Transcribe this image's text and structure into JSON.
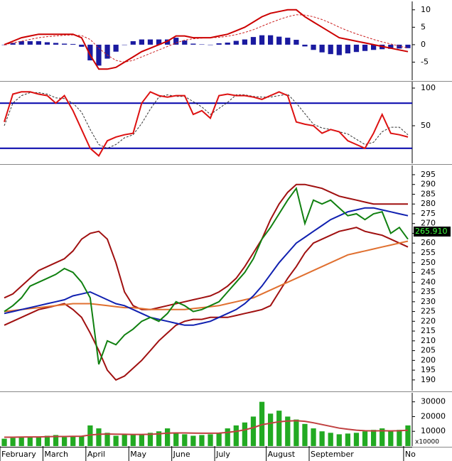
{
  "chart_data": [
    {
      "type": "macd",
      "ylim": [
        -10.2,
        12.4
      ],
      "yticks": [
        -5,
        0,
        5,
        10
      ],
      "series": [
        {
          "kind": "bar",
          "color": "#1a1aa0",
          "values": [
            0,
            0.5,
            1,
            1,
            1,
            0.7,
            0.5,
            0.3,
            0.2,
            -0.6,
            -4.5,
            -6,
            -4,
            -2,
            0,
            1,
            1.5,
            1.5,
            1.5,
            1.5,
            2,
            1.2,
            0.3,
            0.1,
            0,
            0.4,
            0.6,
            1.1,
            1.5,
            2.2,
            2.7,
            2.7,
            2.3,
            2,
            1.4,
            -0.5,
            -1.5,
            -2.2,
            -2.7,
            -3,
            -2.5,
            -2.1,
            -1.8,
            -1.5,
            -1.3,
            -1.2,
            -1.1,
            -1
          ]
        },
        {
          "kind": "line",
          "dash": true,
          "color": "#cc2020",
          "values": [
            0,
            0.5,
            1,
            1.5,
            2,
            2.3,
            2.5,
            2.7,
            2.8,
            2.6,
            1.5,
            -1,
            -3,
            -4.5,
            -5,
            -4.5,
            -3.5,
            -2.5,
            -1.5,
            -0.5,
            0.5,
            1.3,
            1.7,
            1.9,
            2,
            2.1,
            2.4,
            2.9,
            3.5,
            4.3,
            5.3,
            6.3,
            7.2,
            8,
            8.6,
            8.5,
            8,
            7.2,
            6.2,
            5,
            4,
            3.1,
            2.3,
            1.5,
            0.8,
            0.2,
            -0.4,
            -1
          ]
        },
        {
          "kind": "line",
          "dash": false,
          "color": "#cc0000",
          "values": [
            0,
            1,
            2,
            2.5,
            3,
            3,
            3,
            3,
            3,
            2,
            -3,
            -7,
            -7,
            -6.5,
            -5,
            -3.5,
            -2,
            -1,
            0,
            1,
            2.5,
            2.5,
            2,
            2,
            2,
            2.5,
            3,
            4,
            5,
            6.5,
            8,
            9,
            9.5,
            10,
            10,
            8,
            6.5,
            5,
            3.5,
            2,
            1.5,
            1,
            0.5,
            0,
            -0.5,
            -1,
            -1.5,
            -2
          ]
        }
      ]
    },
    {
      "type": "stochastic",
      "ylim": [
        0,
        108.5
      ],
      "yticks": [
        50,
        100
      ],
      "levels": [
        80,
        20
      ],
      "level_color": "#0000aa",
      "series": [
        {
          "kind": "line",
          "dash": true,
          "color": "#333333",
          "values": [
            50,
            80,
            90,
            94,
            94,
            92,
            87,
            86,
            80,
            68,
            45,
            25,
            20,
            25,
            34,
            38,
            53,
            72,
            88,
            91,
            89,
            89,
            82,
            75,
            65,
            73,
            81,
            91,
            91,
            89,
            88,
            88,
            90,
            92,
            80,
            66,
            52,
            47,
            45,
            42,
            39,
            32,
            25,
            28,
            42,
            48,
            48,
            38
          ]
        },
        {
          "kind": "line",
          "dash": false,
          "color": "#dd1111",
          "values": [
            55,
            92,
            95,
            95,
            92,
            90,
            80,
            90,
            70,
            45,
            20,
            10,
            30,
            35,
            38,
            40,
            80,
            95,
            90,
            88,
            90,
            90,
            65,
            70,
            60,
            90,
            92,
            90,
            90,
            88,
            85,
            90,
            95,
            90,
            55,
            52,
            50,
            40,
            45,
            42,
            30,
            25,
            20,
            40,
            65,
            40,
            38,
            35
          ]
        }
      ]
    },
    {
      "type": "price",
      "ylim": [
        184.5,
        299.7
      ],
      "yticks": [
        190,
        195,
        200,
        205,
        210,
        215,
        220,
        225,
        230,
        235,
        240,
        245,
        250,
        255,
        260,
        265,
        270,
        275,
        280,
        285,
        290,
        295
      ],
      "last_value": {
        "value": 265.91,
        "label": "265.910"
      },
      "series": [
        {
          "kind": "line",
          "dash": false,
          "color": "#a01010",
          "values": [
            232,
            234,
            238,
            242,
            246,
            248,
            250,
            252,
            256,
            262,
            265,
            266,
            262,
            250,
            235,
            228,
            226,
            226,
            227,
            228,
            229,
            230,
            231,
            232,
            233,
            235,
            238,
            242,
            248,
            255,
            262,
            272,
            280,
            286,
            290,
            290,
            289,
            288,
            286,
            284,
            283,
            282,
            281,
            280,
            280,
            280,
            280,
            280
          ]
        },
        {
          "kind": "line",
          "dash": false,
          "color": "#a01010",
          "values": [
            218,
            220,
            222,
            224,
            226,
            227,
            228,
            229,
            226,
            222,
            214,
            205,
            195,
            190,
            192,
            196,
            200,
            205,
            210,
            214,
            218,
            220,
            221,
            221,
            222,
            222,
            222,
            223,
            224,
            225,
            226,
            228,
            235,
            242,
            248,
            255,
            260,
            262,
            264,
            266,
            267,
            268,
            266,
            265,
            264,
            262,
            260,
            258
          ]
        },
        {
          "kind": "line",
          "dash": false,
          "color": "#e07030",
          "values": [
            225,
            225.5,
            226,
            226.5,
            227,
            227.5,
            228,
            228.5,
            229,
            229,
            229,
            228.5,
            228,
            227.5,
            227,
            227,
            226.5,
            226,
            226,
            226,
            226,
            226,
            226.5,
            227,
            227.5,
            228,
            229,
            230,
            231,
            232,
            234,
            236,
            238,
            240,
            242,
            244,
            246,
            248,
            250,
            252,
            254,
            255,
            256,
            257,
            258,
            259,
            260,
            261
          ]
        },
        {
          "kind": "line",
          "dash": false,
          "color": "#1020b0",
          "values": [
            224,
            225,
            226,
            227,
            228,
            229,
            230,
            231,
            233,
            234,
            235,
            233,
            231,
            229,
            228,
            226,
            224,
            222,
            221,
            220,
            219,
            218,
            218,
            219,
            220,
            222,
            224,
            226,
            229,
            233,
            238,
            244,
            250,
            255,
            260,
            263,
            266,
            269,
            272,
            274,
            276,
            277,
            278,
            278,
            277,
            276,
            275,
            274
          ]
        },
        {
          "kind": "line",
          "dash": false,
          "color": "#108010",
          "values": [
            225,
            228,
            232,
            238,
            240,
            242,
            244,
            247,
            245,
            240,
            232,
            198,
            210,
            208,
            213,
            216,
            220,
            222,
            220,
            224,
            230,
            228,
            225,
            226,
            228,
            230,
            235,
            240,
            245,
            252,
            262,
            268,
            275,
            282,
            288,
            270,
            282,
            280,
            282,
            278,
            274,
            275,
            272,
            275,
            276,
            265,
            268,
            262
          ]
        }
      ]
    },
    {
      "type": "volume",
      "ylim": [
        0,
        36100
      ],
      "yticks": [
        10000,
        20000,
        30000
      ],
      "unit_label": "x10000",
      "categories": [
        "February",
        null,
        null,
        null,
        null,
        "March",
        null,
        null,
        null,
        null,
        "April",
        null,
        null,
        null,
        null,
        "May",
        null,
        null,
        null,
        null,
        "June",
        null,
        null,
        null,
        null,
        "July",
        null,
        null,
        null,
        null,
        null,
        "August",
        null,
        null,
        null,
        null,
        "September",
        null,
        null,
        null,
        null,
        null,
        null,
        null,
        null,
        null,
        null,
        "No"
      ],
      "series": [
        {
          "kind": "bar",
          "color": "#22aa22",
          "values": [
            5000,
            5500,
            6000,
            6500,
            6000,
            7000,
            7500,
            6000,
            6500,
            7000,
            14000,
            12000,
            9000,
            7000,
            8000,
            7500,
            8000,
            9000,
            10000,
            12000,
            9000,
            8000,
            7000,
            7500,
            8000,
            9000,
            12000,
            14000,
            16000,
            20000,
            30000,
            22000,
            24000,
            20000,
            18000,
            15000,
            12000,
            10000,
            9000,
            8000,
            8500,
            9000,
            10000,
            11000,
            12000,
            10000,
            11000,
            14000
          ]
        },
        {
          "kind": "line",
          "dash": false,
          "color": "#c04040",
          "values": [
            6000,
            6000,
            6100,
            6200,
            6200,
            6400,
            6500,
            6500,
            6600,
            6700,
            7500,
            8000,
            8200,
            8100,
            8000,
            7900,
            7900,
            8000,
            8300,
            8800,
            8900,
            8900,
            8800,
            8700,
            8700,
            8800,
            9300,
            10000,
            11000,
            12500,
            14500,
            15500,
            16500,
            17000,
            17200,
            16800,
            15800,
            14600,
            13400,
            12200,
            11400,
            10800,
            10400,
            10300,
            10400,
            10300,
            10400,
            10800
          ]
        }
      ]
    }
  ]
}
